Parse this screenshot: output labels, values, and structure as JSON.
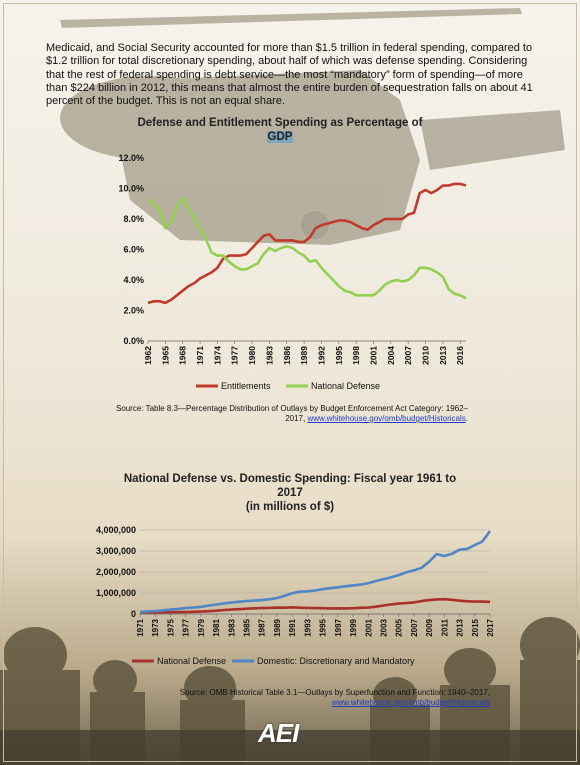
{
  "intro_text": "Medicaid, and Social Security accounted for more than $1.5 trillion in federal spending, compared to $1.2 trillion for total discretionary spending, about half of which was defense spending. Considering that the rest of federal spending is debt service—the most “mandatory” form of spending—of more than $224 billion in 2012, this means that almost the entire burden of sequestration falls on about 41 percent of the budget. This is not an equal share.",
  "logo_text": "AEI",
  "colors": {
    "red": "#c0392b",
    "green": "#92d050",
    "blue": "#4f86c6",
    "dark_red": "#a8322a"
  },
  "chart1": {
    "title_line1": "Defense and Entitlement Spending as Percentage of",
    "title_line2": "GDP",
    "source_line1": "Source: Table 8.3—Percentage Distribution of Outlays by Budget Enforcement Act Category: 1962–",
    "source_line2_prefix": "2017, ",
    "source_link": "www.whitehouse.gov/omb/budget/Historicals"
  },
  "chart2": {
    "title_line1": "National Defense vs. Domestic Spending: Fiscal year 1961 to",
    "title_line2": "2017",
    "title_line3": "(in millions of $)",
    "source_line1": "Source: OMB Historical Table 3.1—Outlays by Superfunction and Function: 1940–2017,",
    "source_link": "www.whitehouse.gov/omb/budget/Historicals"
  },
  "chart_data": [
    {
      "type": "line",
      "title": "Defense and Entitlement Spending as Percentage of GDP",
      "xlabel": "",
      "ylabel": "",
      "ylim": [
        0,
        12
      ],
      "yticks": [
        "0.0%",
        "2.0%",
        "4.0%",
        "6.0%",
        "8.0%",
        "10.0%",
        "12.0%"
      ],
      "x_tick_labels": [
        "1962",
        "1965",
        "1968",
        "1971",
        "1974",
        "1977",
        "1980",
        "1983",
        "1986",
        "1989",
        "1992",
        "1995",
        "1998",
        "2001",
        "2004",
        "2007",
        "2010",
        "2013",
        "2016"
      ],
      "legend_position": "bottom",
      "grid": false,
      "x": [
        1962,
        1963,
        1964,
        1965,
        1966,
        1967,
        1968,
        1969,
        1970,
        1971,
        1972,
        1973,
        1974,
        1975,
        1976,
        1977,
        1978,
        1979,
        1980,
        1981,
        1982,
        1983,
        1984,
        1985,
        1986,
        1987,
        1988,
        1989,
        1990,
        1991,
        1992,
        1993,
        1994,
        1995,
        1996,
        1997,
        1998,
        1999,
        2000,
        2001,
        2002,
        2003,
        2004,
        2005,
        2006,
        2007,
        2008,
        2009,
        2010,
        2011,
        2012,
        2013,
        2014,
        2015,
        2016,
        2017
      ],
      "series": [
        {
          "name": "Entitlements",
          "color": "#c0392b",
          "values": [
            2.5,
            2.6,
            2.6,
            2.5,
            2.7,
            3.0,
            3.3,
            3.6,
            3.8,
            4.1,
            4.3,
            4.5,
            4.8,
            5.4,
            5.6,
            5.6,
            5.6,
            5.7,
            6.1,
            6.5,
            6.9,
            7.0,
            6.6,
            6.6,
            6.6,
            6.6,
            6.5,
            6.5,
            6.8,
            7.4,
            7.6,
            7.7,
            7.8,
            7.9,
            7.9,
            7.8,
            7.6,
            7.4,
            7.3,
            7.6,
            7.8,
            8.0,
            8.0,
            8.0,
            8.0,
            8.3,
            8.4,
            9.7,
            9.9,
            9.7,
            9.9,
            10.2,
            10.2,
            10.3,
            10.3,
            10.2
          ]
        },
        {
          "name": "National Defense",
          "color": "#92d050",
          "values": [
            9.3,
            9.0,
            8.6,
            7.4,
            7.8,
            8.8,
            9.4,
            8.7,
            8.1,
            7.3,
            6.7,
            5.8,
            5.6,
            5.6,
            5.2,
            4.9,
            4.7,
            4.7,
            4.9,
            5.1,
            5.7,
            6.1,
            5.9,
            6.1,
            6.2,
            6.1,
            5.8,
            5.6,
            5.2,
            5.3,
            4.8,
            4.4,
            4.0,
            3.6,
            3.3,
            3.2,
            3.0,
            3.0,
            3.0,
            3.0,
            3.3,
            3.7,
            3.9,
            4.0,
            3.9,
            4.0,
            4.3,
            4.8,
            4.8,
            4.7,
            4.5,
            4.2,
            3.4,
            3.1,
            3.0,
            2.8
          ]
        }
      ]
    },
    {
      "type": "line",
      "title": "National Defense vs. Domestic Spending: Fiscal year 1961 to 2017 (in millions of $)",
      "xlabel": "",
      "ylabel": "",
      "ylim": [
        0,
        4000000
      ],
      "yticks": [
        "0",
        "1,000,000",
        "2,000,000",
        "3,000,000",
        "4,000,000"
      ],
      "x_tick_labels": [
        "1971",
        "1973",
        "1975",
        "1977",
        "1979",
        "1981",
        "1983",
        "1985",
        "1987",
        "1989",
        "1991",
        "1993",
        "1995",
        "1997",
        "1999",
        "2001",
        "2003",
        "2005",
        "2007",
        "2009",
        "2011",
        "2013",
        "2015",
        "2017"
      ],
      "legend_position": "bottom",
      "grid": true,
      "x": [
        1971,
        1972,
        1973,
        1974,
        1975,
        1976,
        1977,
        1978,
        1979,
        1980,
        1981,
        1982,
        1983,
        1984,
        1985,
        1986,
        1987,
        1988,
        1989,
        1990,
        1991,
        1992,
        1993,
        1994,
        1995,
        1996,
        1997,
        1998,
        1999,
        2000,
        2001,
        2002,
        2003,
        2004,
        2005,
        2006,
        2007,
        2008,
        2009,
        2010,
        2011,
        2012,
        2013,
        2014,
        2015,
        2016,
        2017
      ],
      "series": [
        {
          "name": "National Defense",
          "color": "#a8322a",
          "values": [
            79000,
            79000,
            76000,
            79000,
            87000,
            89000,
            97000,
            104000,
            116000,
            134000,
            158000,
            185000,
            210000,
            227000,
            253000,
            273000,
            282000,
            290000,
            304000,
            300000,
            320000,
            298000,
            291000,
            282000,
            274000,
            266000,
            271000,
            268000,
            275000,
            294000,
            305000,
            349000,
            405000,
            456000,
            495000,
            522000,
            551000,
            616000,
            661000,
            693000,
            705000,
            677000,
            633000,
            604000,
            590000,
            590000,
            578000
          ]
        },
        {
          "name": "Domestic: Discretionary and Mandatory",
          "color": "#4f86c6",
          "values": [
            100000,
            120000,
            140000,
            170000,
            210000,
            245000,
            280000,
            310000,
            340000,
            400000,
            450000,
            500000,
            550000,
            580000,
            620000,
            640000,
            660000,
            700000,
            760000,
            860000,
            990000,
            1060000,
            1080000,
            1120000,
            1180000,
            1230000,
            1270000,
            1320000,
            1360000,
            1400000,
            1470000,
            1570000,
            1660000,
            1750000,
            1850000,
            1980000,
            2080000,
            2200000,
            2490000,
            2850000,
            2760000,
            2870000,
            3060000,
            3100000,
            3280000,
            3450000,
            3950000
          ]
        }
      ]
    }
  ]
}
